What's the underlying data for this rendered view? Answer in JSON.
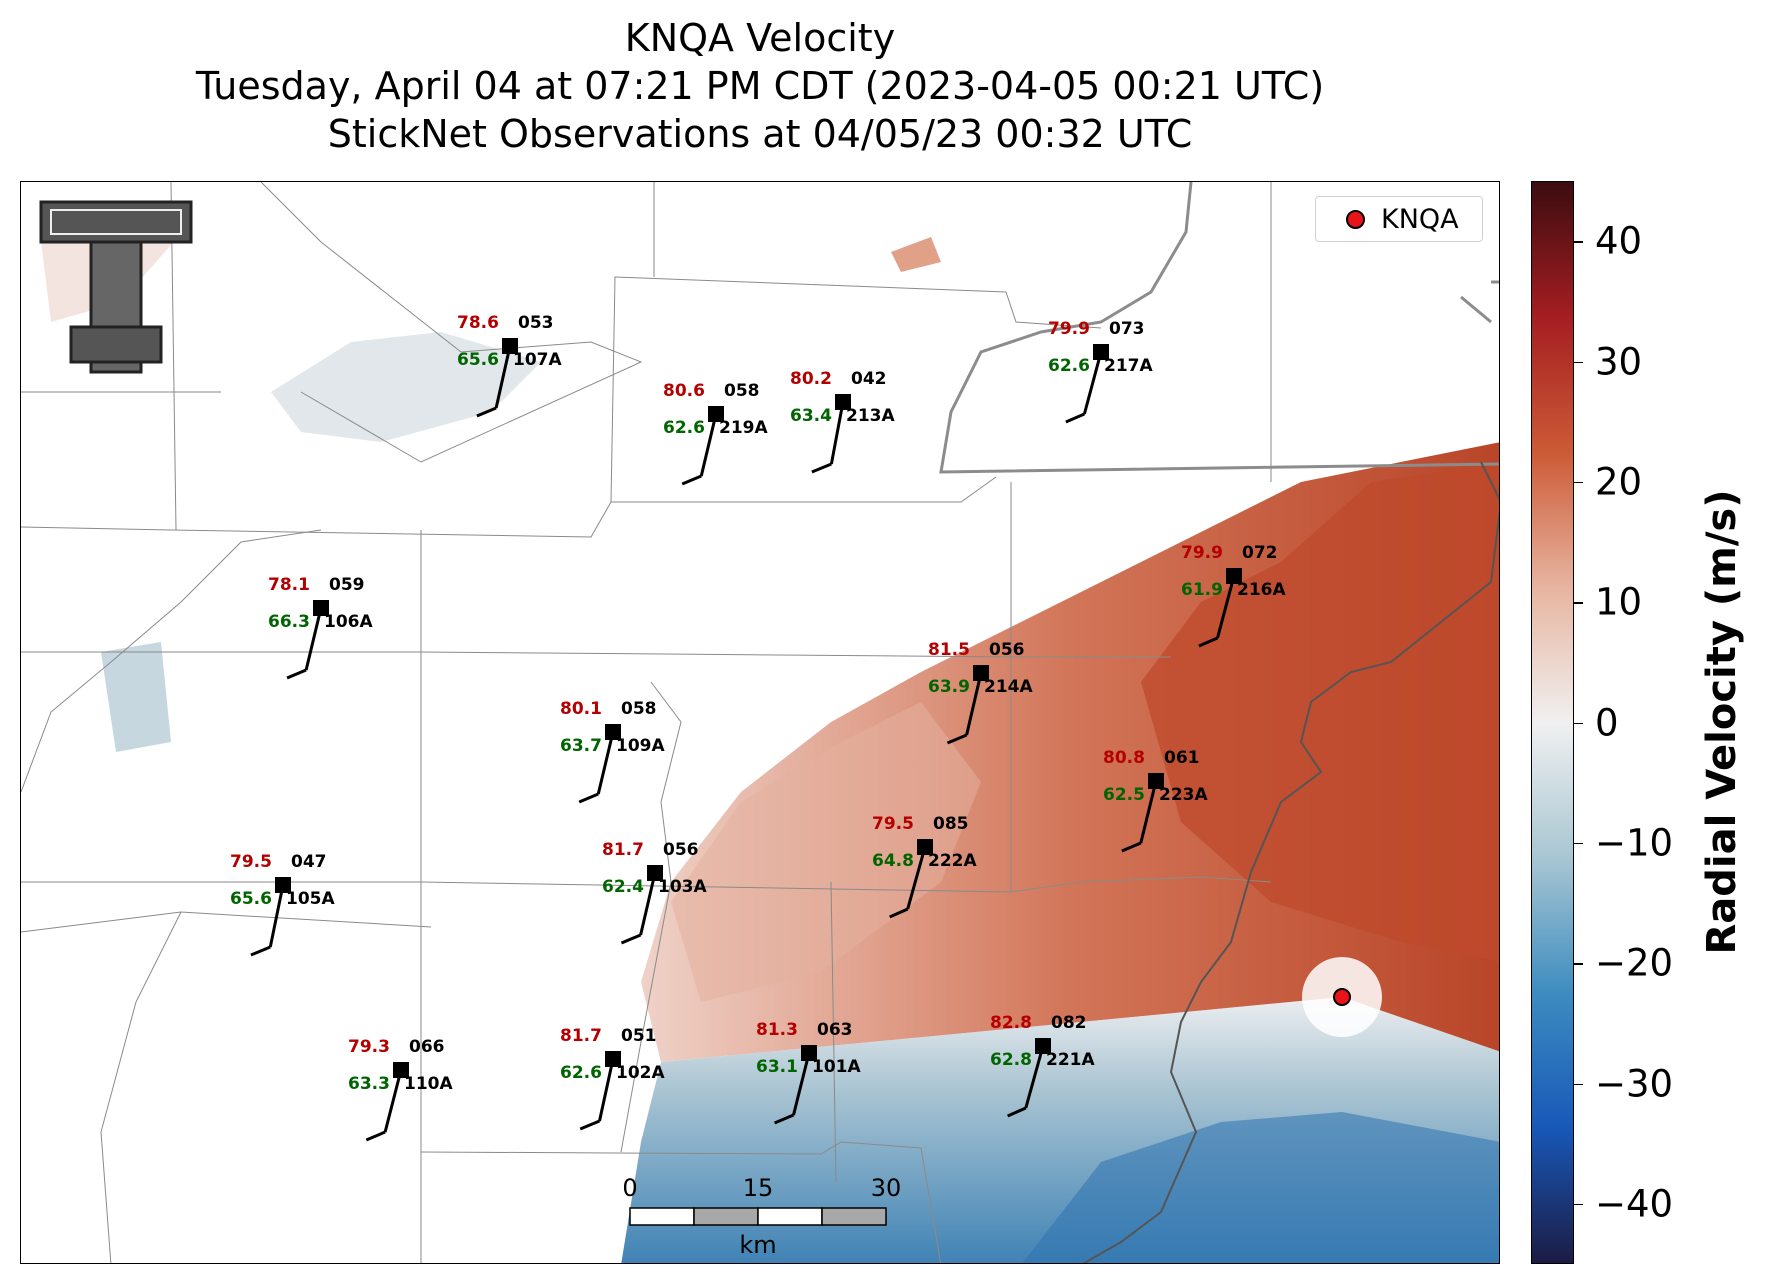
{
  "title": {
    "line1": "KNQA Velocity",
    "line2": "Tuesday, April 04 at 07:21 PM CDT (2023-04-05 00:21 UTC)",
    "line3": "StickNet Observations at 04/05/23 00:32 UTC"
  },
  "legend": {
    "label": "KNQA",
    "marker_color": "#e8141a"
  },
  "radar_site": {
    "name": "KNQA"
  },
  "colorbar": {
    "label": "Radial Velocity (m/s)",
    "range": [
      -45,
      45
    ],
    "ticks": [
      {
        "value": 40,
        "label": "40"
      },
      {
        "value": 30,
        "label": "30"
      },
      {
        "value": 20,
        "label": "20"
      },
      {
        "value": 10,
        "label": "10"
      },
      {
        "value": 0,
        "label": "0"
      },
      {
        "value": -10,
        "label": "−10"
      },
      {
        "value": -20,
        "label": "−20"
      },
      {
        "value": -30,
        "label": "−30"
      },
      {
        "value": -40,
        "label": "−40"
      }
    ],
    "colors": [
      "#1c1c44",
      "#1858b8",
      "#3d8cc0",
      "#a9c6d2",
      "#f0f0f0",
      "#e7b4a0",
      "#cc5a36",
      "#a51e22",
      "#3c0c10"
    ]
  },
  "scale_bar": {
    "ticks": [
      "0",
      "15",
      "30"
    ],
    "unit": "km"
  },
  "stations": [
    {
      "id": "107A",
      "temp": "78.6",
      "dew": "65.6",
      "dir": "053"
    },
    {
      "id": "219A",
      "temp": "80.6",
      "dew": "62.6",
      "dir": "058"
    },
    {
      "id": "213A",
      "temp": "80.2",
      "dew": "63.4",
      "dir": "042"
    },
    {
      "id": "217A",
      "temp": "79.9",
      "dew": "62.6",
      "dir": "073"
    },
    {
      "id": "216A",
      "temp": "79.9",
      "dew": "61.9",
      "dir": "072"
    },
    {
      "id": "106A",
      "temp": "78.1",
      "dew": "66.3",
      "dir": "059"
    },
    {
      "id": "214A",
      "temp": "81.5",
      "dew": "63.9",
      "dir": "056"
    },
    {
      "id": "109A",
      "temp": "80.1",
      "dew": "63.7",
      "dir": "058"
    },
    {
      "id": "223A",
      "temp": "80.8",
      "dew": "62.5",
      "dir": "061"
    },
    {
      "id": "222A",
      "temp": "79.5",
      "dew": "64.8",
      "dir": "085"
    },
    {
      "id": "103A",
      "temp": "81.7",
      "dew": "62.4",
      "dir": "056"
    },
    {
      "id": "105A",
      "temp": "79.5",
      "dew": "65.6",
      "dir": "047"
    },
    {
      "id": "221A",
      "temp": "82.8",
      "dew": "62.8",
      "dir": "082"
    },
    {
      "id": "102A",
      "temp": "81.7",
      "dew": "62.6",
      "dir": "051"
    },
    {
      "id": "101A",
      "temp": "81.3",
      "dew": "63.1",
      "dir": "063"
    },
    {
      "id": "110A",
      "temp": "79.3",
      "dew": "63.3",
      "dir": "066"
    }
  ]
}
